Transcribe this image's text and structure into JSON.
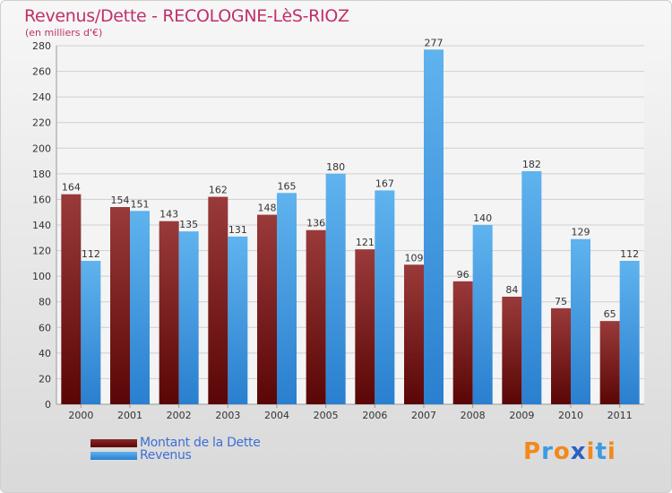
{
  "title": "Revenus/Dette - RECOLOGNE-LèS-RIOZ",
  "subtitle": "(en milliers d'€)",
  "colors": {
    "dette": "#6b1010",
    "revenus": "#3a99e0",
    "title": "#c0306a",
    "legend_text": "#3d6fd6"
  },
  "logo": {
    "letters": [
      "P",
      "r",
      "o",
      "x",
      "i",
      "t",
      "i"
    ],
    "colors": [
      "#f08a1c",
      "#3d9be0",
      "#f08a1c",
      "#2a5fc4",
      "#f08a1c",
      "#3d9be0",
      "#f08a1c"
    ]
  },
  "chart_data": {
    "type": "bar",
    "categories": [
      "2000",
      "2001",
      "2002",
      "2003",
      "2004",
      "2005",
      "2006",
      "2007",
      "2008",
      "2009",
      "2010",
      "2011"
    ],
    "series": [
      {
        "name": "Montant de la Dette",
        "values": [
          164,
          154,
          143,
          162,
          148,
          136,
          121,
          109,
          96,
          84,
          75,
          65
        ]
      },
      {
        "name": "Revenus",
        "values": [
          112,
          151,
          135,
          131,
          165,
          180,
          167,
          277,
          140,
          182,
          129,
          112
        ]
      }
    ],
    "ylim": [
      0,
      280
    ],
    "yticks": [
      0,
      20,
      40,
      60,
      80,
      100,
      120,
      140,
      160,
      180,
      200,
      220,
      240,
      260,
      280
    ],
    "grid": true,
    "legend": "bottom-left"
  }
}
